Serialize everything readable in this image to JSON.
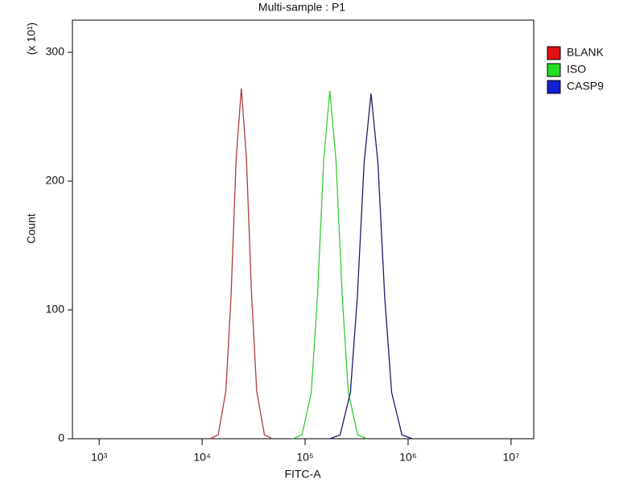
{
  "chart_data": {
    "type": "line",
    "title": "Multi-sample : P1",
    "x_label": "FITC-A",
    "y_label": "Count",
    "y_unit": "(x 10¹)",
    "xscale": "log",
    "xlim": [
      550,
      16600000
    ],
    "ylim": [
      0,
      325
    ],
    "xticks": [
      {
        "value": 1000,
        "label": "10³"
      },
      {
        "value": 10000,
        "label": "10⁴"
      },
      {
        "value": 100000,
        "label": "10⁵"
      },
      {
        "value": 1000000,
        "label": "10⁶"
      },
      {
        "value": 10000000,
        "label": "10⁷"
      }
    ],
    "yticks": [
      0,
      100,
      200,
      300
    ],
    "legend": "right",
    "series": [
      {
        "name": "BLANK",
        "color": "#b03a3a",
        "legend_color": "#e01010",
        "x": [
          12000,
          14300,
          17000,
          19100,
          21400,
          24000,
          26900,
          30200,
          33900,
          40300,
          47900
        ],
        "values": [
          0,
          3,
          37,
          112,
          218,
          272,
          218,
          112,
          37,
          3,
          0
        ]
      },
      {
        "name": "ISO",
        "color": "#33cc33",
        "legend_color": "#22dd22",
        "x": [
          75900,
          93300,
          114800,
          131800,
          151400,
          173800,
          199500,
          229100,
          263000,
          323600,
          398100
        ],
        "values": [
          0,
          3,
          36,
          111,
          216,
          270,
          216,
          111,
          36,
          3,
          0
        ]
      },
      {
        "name": "CASP9",
        "color": "#1c1c70",
        "legend_color": "#1020d0",
        "x": [
          173800,
          218800,
          275400,
          321400,
          374100,
          436500,
          509300,
          592900,
          691800,
          871000,
          1096500
        ],
        "values": [
          0,
          3,
          36,
          110,
          214,
          268,
          214,
          110,
          36,
          3,
          0
        ]
      }
    ]
  }
}
